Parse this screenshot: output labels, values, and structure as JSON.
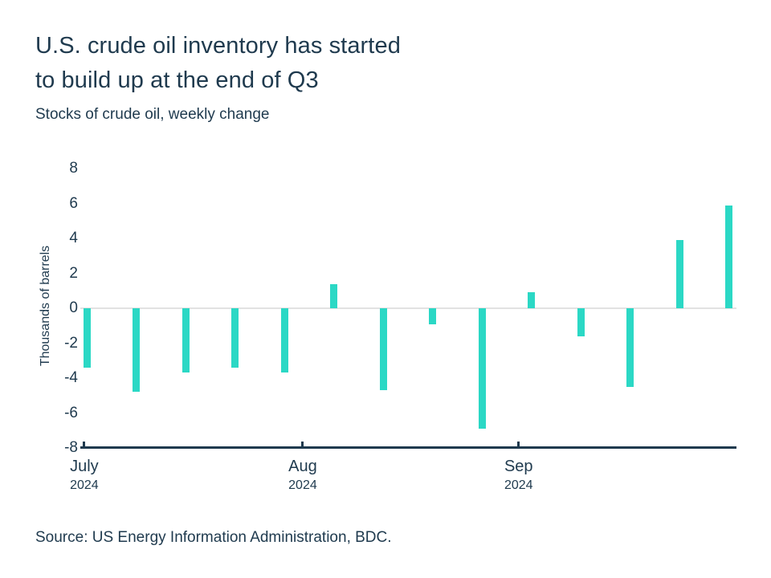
{
  "chart_data": {
    "type": "bar",
    "title_lines": [
      "U.S. crude oil inventory has started",
      "to build up at the end of Q3"
    ],
    "subtitle": "Stocks of crude oil, weekly change",
    "ylabel": "Thousands of barrels",
    "ylim": [
      -8,
      8
    ],
    "yticks": [
      8,
      6,
      4,
      2,
      0,
      -2,
      -4,
      -6,
      -8
    ],
    "x_period": "weekly, July 2024 through early October 2024",
    "values": [
      -3.4,
      -4.8,
      -3.7,
      -3.4,
      -3.7,
      1.4,
      -4.7,
      -0.9,
      -6.9,
      0.9,
      -1.6,
      -4.5,
      3.9,
      5.9
    ],
    "xticks": [
      {
        "label": "July",
        "year": "2024",
        "pos": 0.006
      },
      {
        "label": "Aug",
        "year": "2024",
        "pos": 0.339
      },
      {
        "label": "Sep",
        "year": "2024",
        "pos": 0.668
      }
    ],
    "legend": "none",
    "grid": "zero-line-only",
    "colors": {
      "bar": "#2bd8c5",
      "axis": "#1f3a4e",
      "zero_line": "#e2e2e2",
      "text": "#1f3a4e"
    },
    "source": "Source: US Energy Information Administration, BDC."
  }
}
